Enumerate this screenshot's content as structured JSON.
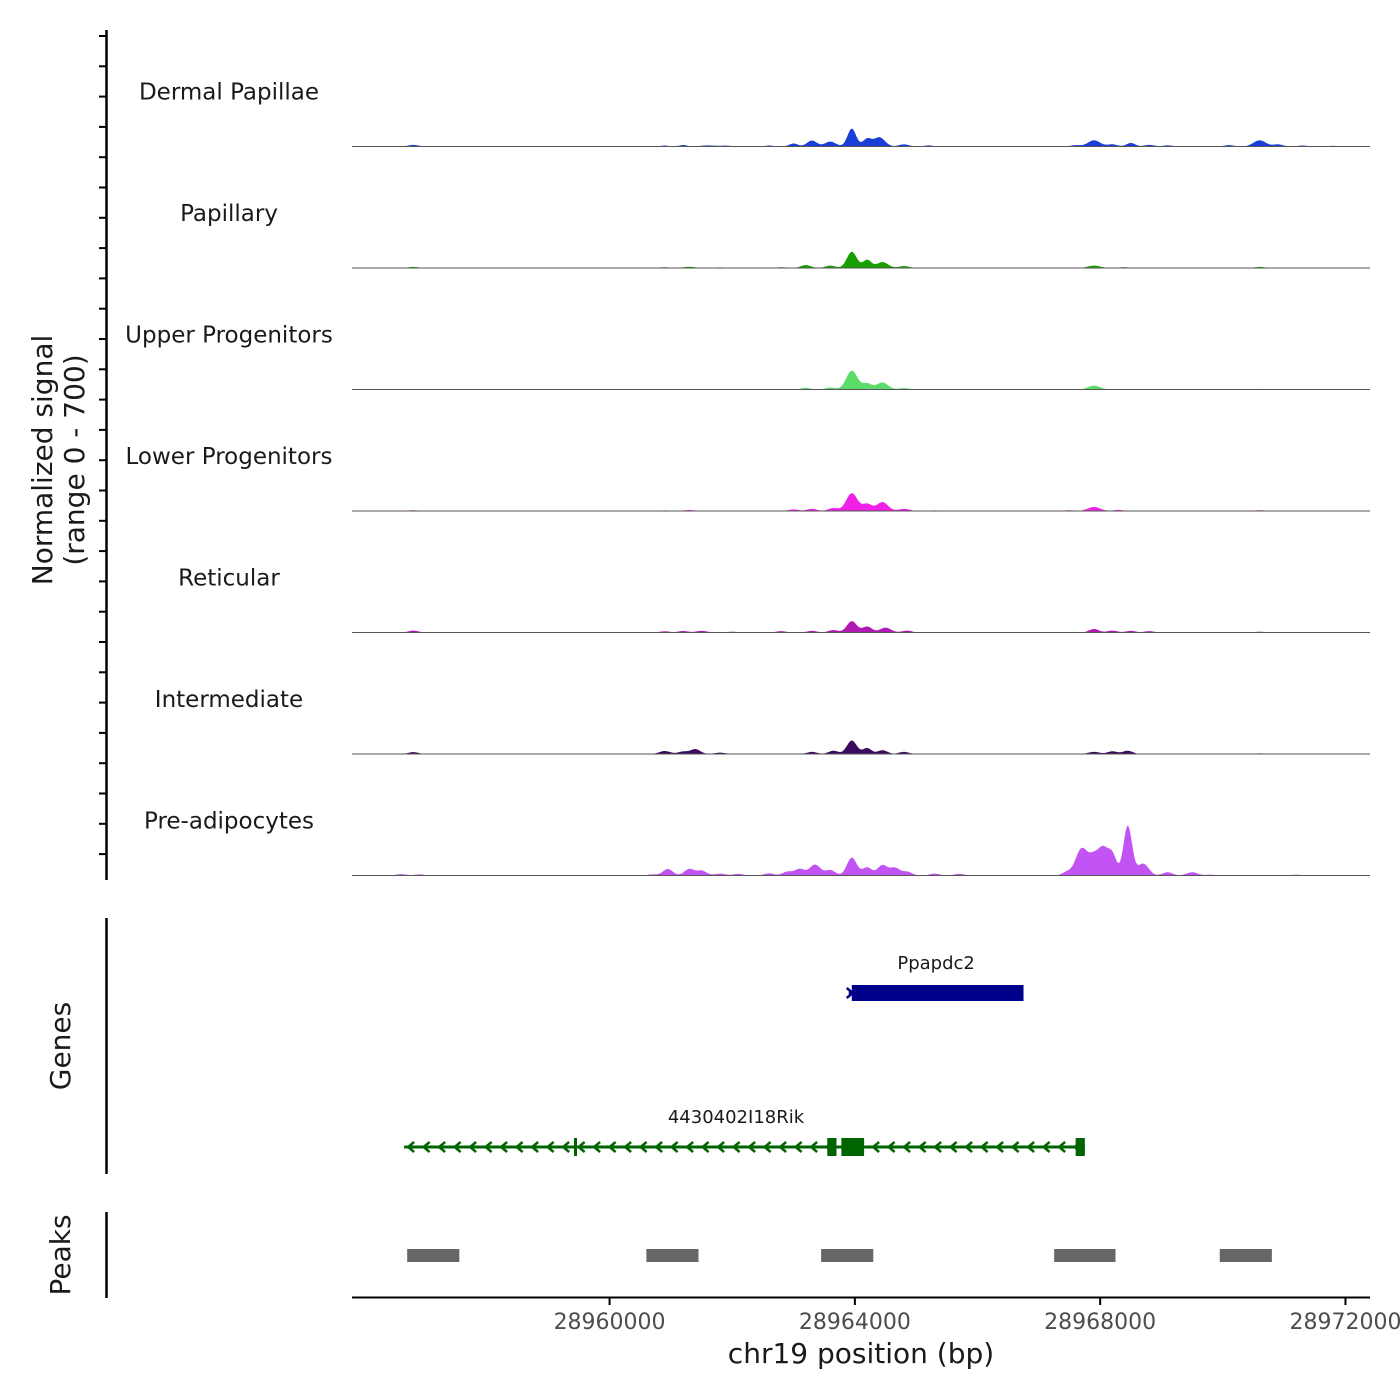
{
  "chart_data": {
    "type": "area",
    "title": "",
    "ylabel_line1": "Normalized signal",
    "ylabel_line2": "(range 0 - 700)",
    "ylim": [
      0,
      700
    ],
    "xlabel": "chr19 position (bp)",
    "xlim": [
      28955800,
      28972400
    ],
    "x_ticks": [
      28960000,
      28964000,
      28968000,
      28972000
    ],
    "x_tick_labels": [
      "28960000",
      "28964000",
      "28968000",
      "28972000"
    ],
    "tracks": [
      {
        "name": "Dermal Papillae",
        "color": "#1a3fd9",
        "peaks": [
          [
            28956800,
            30,
            80
          ],
          [
            28960900,
            18,
            60
          ],
          [
            28961200,
            28,
            60
          ],
          [
            28961600,
            20,
            120
          ],
          [
            28961900,
            15,
            100
          ],
          [
            28962600,
            18,
            60
          ],
          [
            28963000,
            55,
            70
          ],
          [
            28963300,
            110,
            80
          ],
          [
            28963600,
            90,
            90
          ],
          [
            28963950,
            330,
            70
          ],
          [
            28964200,
            140,
            70
          ],
          [
            28964400,
            170,
            90
          ],
          [
            28964800,
            40,
            80
          ],
          [
            28965200,
            20,
            70
          ],
          [
            28967600,
            25,
            80
          ],
          [
            28967900,
            115,
            100
          ],
          [
            28968200,
            40,
            80
          ],
          [
            28968500,
            65,
            70
          ],
          [
            28968800,
            30,
            80
          ],
          [
            28969100,
            20,
            80
          ],
          [
            28970100,
            25,
            80
          ],
          [
            28970600,
            115,
            100
          ],
          [
            28970900,
            40,
            80
          ],
          [
            28971300,
            18,
            80
          ],
          [
            28971800,
            12,
            80
          ]
        ]
      },
      {
        "name": "Papillary",
        "color": "#17a000",
        "peaks": [
          [
            28956800,
            20,
            80
          ],
          [
            28960900,
            15,
            80
          ],
          [
            28961300,
            22,
            100
          ],
          [
            28961800,
            12,
            80
          ],
          [
            28962800,
            15,
            80
          ],
          [
            28963200,
            55,
            80
          ],
          [
            28963600,
            45,
            80
          ],
          [
            28963950,
            300,
            80
          ],
          [
            28964200,
            150,
            70
          ],
          [
            28964450,
            110,
            90
          ],
          [
            28964800,
            35,
            90
          ],
          [
            28967900,
            45,
            100
          ],
          [
            28968400,
            15,
            80
          ],
          [
            28970600,
            20,
            80
          ]
        ]
      },
      {
        "name": "Upper Progenitors",
        "color": "#5ddc6a",
        "peaks": [
          [
            28956800,
            10,
            80
          ],
          [
            28961000,
            10,
            80
          ],
          [
            28962800,
            10,
            80
          ],
          [
            28963200,
            30,
            80
          ],
          [
            28963600,
            35,
            80
          ],
          [
            28963950,
            350,
            90
          ],
          [
            28964200,
            110,
            80
          ],
          [
            28964450,
            130,
            90
          ],
          [
            28964800,
            25,
            90
          ],
          [
            28967900,
            70,
            100
          ],
          [
            28970600,
            12,
            80
          ],
          [
            28971300,
            10,
            80
          ]
        ]
      },
      {
        "name": "Lower Progenitors",
        "color": "#f020e8",
        "peaks": [
          [
            28956800,
            15,
            80
          ],
          [
            28958300,
            8,
            80
          ],
          [
            28960900,
            12,
            80
          ],
          [
            28961300,
            18,
            100
          ],
          [
            28962600,
            10,
            80
          ],
          [
            28963000,
            30,
            80
          ],
          [
            28963300,
            40,
            80
          ],
          [
            28963650,
            55,
            80
          ],
          [
            28963950,
            330,
            90
          ],
          [
            28964200,
            130,
            80
          ],
          [
            28964450,
            165,
            90
          ],
          [
            28964800,
            40,
            90
          ],
          [
            28965300,
            12,
            80
          ],
          [
            28967500,
            15,
            80
          ],
          [
            28967900,
            75,
            100
          ],
          [
            28968300,
            20,
            80
          ],
          [
            28969500,
            8,
            80
          ],
          [
            28970600,
            15,
            80
          ],
          [
            28971600,
            10,
            80
          ]
        ]
      },
      {
        "name": "Reticular",
        "color": "#b01ab4",
        "peaks": [
          [
            28956800,
            35,
            80
          ],
          [
            28960900,
            22,
            80
          ],
          [
            28961200,
            28,
            80
          ],
          [
            28961500,
            30,
            90
          ],
          [
            28962000,
            15,
            80
          ],
          [
            28962800,
            25,
            80
          ],
          [
            28963300,
            30,
            80
          ],
          [
            28963650,
            45,
            80
          ],
          [
            28963950,
            210,
            80
          ],
          [
            28964200,
            110,
            80
          ],
          [
            28964500,
            90,
            90
          ],
          [
            28964850,
            35,
            80
          ],
          [
            28967900,
            65,
            80
          ],
          [
            28968200,
            35,
            80
          ],
          [
            28968500,
            30,
            80
          ],
          [
            28968800,
            25,
            80
          ],
          [
            28970600,
            15,
            80
          ]
        ]
      },
      {
        "name": "Intermediate",
        "color": "#3a0a5e",
        "peaks": [
          [
            28956800,
            35,
            80
          ],
          [
            28960900,
            55,
            90
          ],
          [
            28961200,
            45,
            80
          ],
          [
            28961400,
            90,
            80
          ],
          [
            28961800,
            25,
            90
          ],
          [
            28963300,
            40,
            80
          ],
          [
            28963650,
            60,
            80
          ],
          [
            28963950,
            250,
            80
          ],
          [
            28964200,
            110,
            70
          ],
          [
            28964450,
            70,
            80
          ],
          [
            28964800,
            40,
            80
          ],
          [
            28967900,
            40,
            90
          ],
          [
            28968200,
            50,
            80
          ],
          [
            28968450,
            60,
            80
          ],
          [
            28970600,
            12,
            80
          ]
        ]
      },
      {
        "name": "Pre-adipocytes",
        "color": "#c154f2",
        "peaks": [
          [
            28956600,
            25,
            80
          ],
          [
            28956900,
            20,
            80
          ],
          [
            28960700,
            20,
            80
          ],
          [
            28960950,
            120,
            80
          ],
          [
            28961300,
            120,
            80
          ],
          [
            28961500,
            90,
            80
          ],
          [
            28961800,
            35,
            90
          ],
          [
            28962100,
            30,
            80
          ],
          [
            28962600,
            40,
            80
          ],
          [
            28962900,
            70,
            80
          ],
          [
            28963100,
            120,
            80
          ],
          [
            28963350,
            200,
            90
          ],
          [
            28963600,
            100,
            80
          ],
          [
            28963950,
            330,
            80
          ],
          [
            28964200,
            150,
            80
          ],
          [
            28964450,
            190,
            80
          ],
          [
            28964650,
            140,
            80
          ],
          [
            28964850,
            70,
            80
          ],
          [
            28965300,
            35,
            80
          ],
          [
            28965700,
            30,
            80
          ],
          [
            28967450,
            60,
            70
          ],
          [
            28967700,
            500,
            100
          ],
          [
            28967900,
            300,
            80
          ],
          [
            28968050,
            460,
            80
          ],
          [
            28968200,
            370,
            70
          ],
          [
            28968450,
            920,
            70
          ],
          [
            28968700,
            220,
            90
          ],
          [
            28969100,
            60,
            80
          ],
          [
            28969500,
            60,
            90
          ],
          [
            28969800,
            15,
            80
          ],
          [
            28971200,
            15,
            80
          ]
        ]
      }
    ],
    "genes": [
      {
        "name": "Ppapdc2",
        "strand": "+",
        "start": 28963900,
        "end": 28966750,
        "color": "#00008b",
        "exons": [
          [
            28963950,
            28966750
          ]
        ]
      },
      {
        "name": "4430402I18Rik",
        "strand": "-",
        "start": 28956650,
        "end": 28967750,
        "color": "#006400",
        "exons": [
          [
            28959420,
            28959450
          ],
          [
            28963550,
            28963700
          ],
          [
            28963780,
            28964150
          ],
          [
            28967600,
            28967750
          ]
        ]
      }
    ],
    "genes_panel_label": "Genes",
    "peaks_panel_label": "Peaks",
    "peak_regions": [
      [
        28956700,
        28957550
      ],
      [
        28960600,
        28961450
      ],
      [
        28963450,
        28964300
      ],
      [
        28967250,
        28968250
      ],
      [
        28969950,
        28970800
      ]
    ],
    "peak_color": "#666666"
  }
}
